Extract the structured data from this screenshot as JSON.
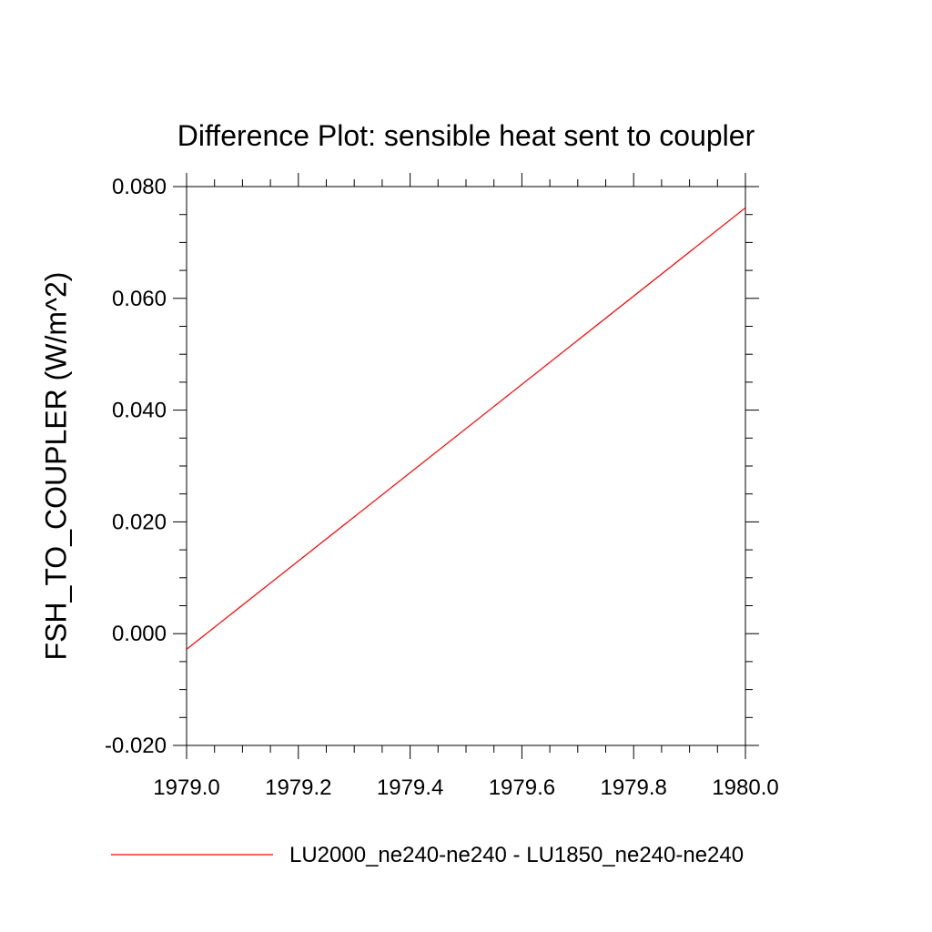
{
  "chart_data": {
    "type": "line",
    "title": "Difference Plot: sensible heat sent to coupler",
    "xlabel": "",
    "ylabel": "FSH_TO_COUPLER  (W/m^2)",
    "xlim": [
      1979.0,
      1980.0
    ],
    "ylim": [
      -0.02,
      0.08
    ],
    "x_ticks": [
      1979.0,
      1979.2,
      1979.4,
      1979.6,
      1979.8,
      1980.0
    ],
    "x_tick_labels": [
      "1979.0",
      "1979.2",
      "1979.4",
      "1979.6",
      "1979.8",
      "1980.0"
    ],
    "y_ticks": [
      -0.02,
      0.0,
      0.02,
      0.04,
      0.06,
      0.08
    ],
    "y_tick_labels": [
      "-0.020",
      "0.000",
      "0.020",
      "0.040",
      "0.060",
      "0.080"
    ],
    "grid": false,
    "legend_position": "bottom",
    "series": [
      {
        "name": "LU2000_ne240-ne240 - LU1850_ne240-ne240",
        "color": "#ff0000",
        "x": [
          1979.0,
          1980.0
        ],
        "y": [
          -0.0028,
          0.0762
        ]
      }
    ]
  }
}
